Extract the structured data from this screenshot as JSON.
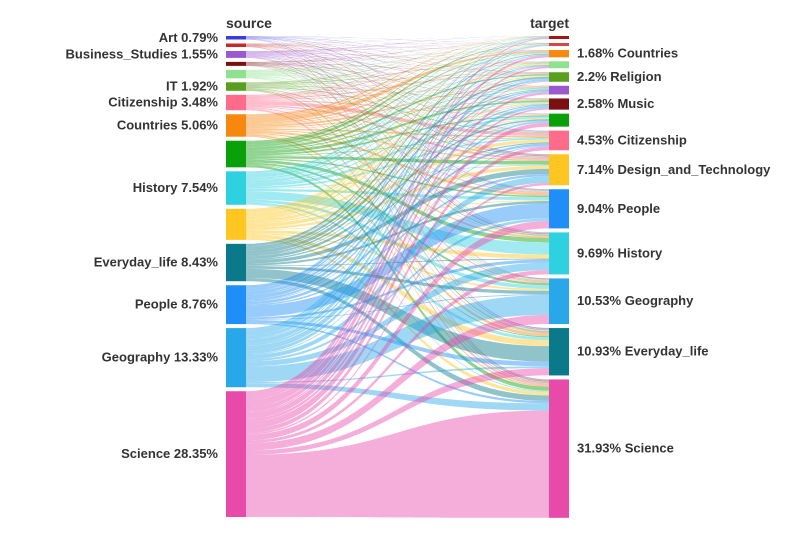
{
  "chart_data": {
    "type": "sankey",
    "source_header": "source",
    "target_header": "target",
    "source_nodes": [
      {
        "name": "Art",
        "pct": 0.79,
        "color": "#3b3bd6",
        "label": "Art 0.79%"
      },
      {
        "name": "",
        "pct": 0.79,
        "color": "#c62828",
        "label": ""
      },
      {
        "name": "Business_Studies",
        "pct": 1.55,
        "color": "#9b59d0",
        "label": "Business_Studies 1.55%"
      },
      {
        "name": "",
        "pct": 0.9,
        "color": "#7a1010",
        "label": ""
      },
      {
        "name": "",
        "pct": 1.9,
        "color": "#8fe08f",
        "label": ""
      },
      {
        "name": "IT",
        "pct": 1.92,
        "color": "#5a9e1e",
        "label": "IT 1.92%"
      },
      {
        "name": "Citizenship",
        "pct": 3.48,
        "color": "#ff6b8b",
        "label": "Citizenship 3.48%"
      },
      {
        "name": "Countries",
        "pct": 5.06,
        "color": "#f7880f",
        "label": "Countries 5.06%"
      },
      {
        "name": "",
        "pct": 6.0,
        "color": "#0aa00a",
        "label": ""
      },
      {
        "name": "History",
        "pct": 7.54,
        "color": "#2ed1e0",
        "label": "History 7.54%"
      },
      {
        "name": "",
        "pct": 7.0,
        "color": "#ffc520",
        "label": ""
      },
      {
        "name": "Everyday_life",
        "pct": 8.43,
        "color": "#0a7a8a",
        "label": "Everyday_life 8.43%"
      },
      {
        "name": "People",
        "pct": 8.76,
        "color": "#1f8ff7",
        "label": "People 8.76%"
      },
      {
        "name": "Geography",
        "pct": 13.33,
        "color": "#28a8e8",
        "label": "Geography 13.33%"
      },
      {
        "name": "Science",
        "pct": 28.35,
        "color": "#e84aaa",
        "label": "Science 28.35%"
      }
    ],
    "target_nodes": [
      {
        "name": "",
        "pct": 0.5,
        "color": "#a01818",
        "label": ""
      },
      {
        "name": "",
        "pct": 0.7,
        "color": "#d04848",
        "label": ""
      },
      {
        "name": "Countries",
        "pct": 1.68,
        "color": "#f7880f",
        "label": "1.68% Countries"
      },
      {
        "name": "",
        "pct": 1.6,
        "color": "#8fe08f",
        "label": ""
      },
      {
        "name": "Religion",
        "pct": 2.2,
        "color": "#5a9e1e",
        "label": "2.2% Religion"
      },
      {
        "name": "",
        "pct": 2.0,
        "color": "#9b59d0",
        "label": ""
      },
      {
        "name": "Music",
        "pct": 2.58,
        "color": "#7a1010",
        "label": "2.58% Music"
      },
      {
        "name": "",
        "pct": 3.0,
        "color": "#0aa00a",
        "label": ""
      },
      {
        "name": "Citizenship",
        "pct": 4.53,
        "color": "#ff6b8b",
        "label": "4.53% Citizenship"
      },
      {
        "name": "Design_and_Technology",
        "pct": 7.14,
        "color": "#ffc520",
        "label": "7.14% Design_and_Technology"
      },
      {
        "name": "People",
        "pct": 9.04,
        "color": "#1f8ff7",
        "label": "9.04% People"
      },
      {
        "name": "History",
        "pct": 9.69,
        "color": "#2ed1e0",
        "label": "9.69% History"
      },
      {
        "name": "Geography",
        "pct": 10.53,
        "color": "#28a8e8",
        "label": "10.53% Geography"
      },
      {
        "name": "Everyday_life",
        "pct": 10.93,
        "color": "#0a7a8a",
        "label": "10.93% Everyday_life"
      },
      {
        "name": "Science",
        "pct": 31.93,
        "color": "#e84aaa",
        "label": "31.93% Science"
      }
    ]
  }
}
